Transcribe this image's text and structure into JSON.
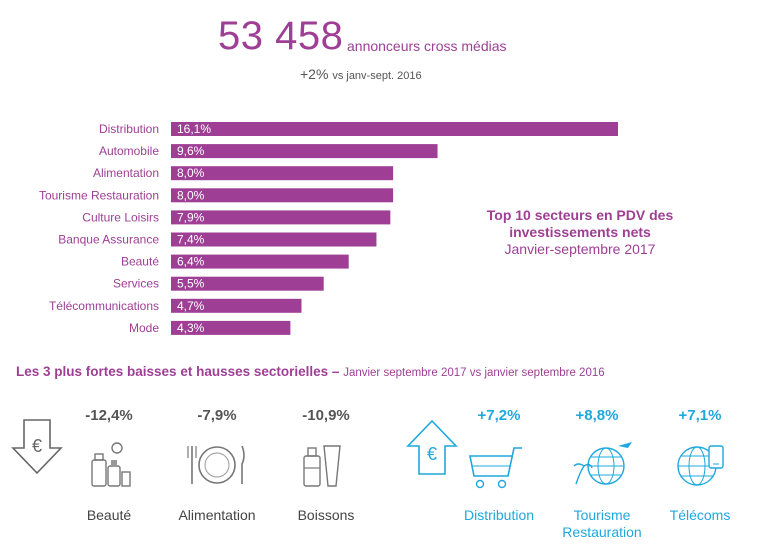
{
  "header": {
    "count": "53 458",
    "count_label": "annonceurs cross médias",
    "change": "+2%",
    "change_label": "vs janv-sept. 2016"
  },
  "chart_data": {
    "type": "bar",
    "orientation": "horizontal",
    "categories": [
      "Distribution",
      "Automobile",
      "Alimentation",
      "Tourisme Restauration",
      "Culture Loisirs",
      "Banque Assurance",
      "Beauté",
      "Services",
      "Télécommunications",
      "Mode"
    ],
    "values": [
      16.1,
      9.6,
      8.0,
      8.0,
      7.9,
      7.4,
      6.4,
      5.5,
      4.7,
      4.3
    ],
    "data_labels": [
      "16,1%",
      "9,6%",
      "8,0%",
      "8,0%",
      "7,9%",
      "7,4%",
      "6,4%",
      "5,5%",
      "4,7%",
      "4,3%"
    ],
    "bar_color": "#9e3f95",
    "title_line1": "Top 10 secteurs en PDV des",
    "title_line2": "investissements nets",
    "title_line3": "Janvier-septembre 2017"
  },
  "bottom": {
    "title": "Les 3 plus fortes baisses et hausses sectorielles –",
    "subtitle": "Janvier septembre 2017 vs janvier septembre 2016",
    "down_color": "#555555",
    "up_color": "#1fa8dd",
    "euro_symbol": "€",
    "decreases": [
      {
        "pct": "-12,4%",
        "name": "Beauté",
        "icon": "cosmetics-icon"
      },
      {
        "pct": "-7,9%",
        "name": "Alimentation",
        "icon": "plate-cutlery-icon"
      },
      {
        "pct": "-10,9%",
        "name": "Boissons",
        "icon": "drinks-icon"
      }
    ],
    "increases": [
      {
        "pct": "+7,2%",
        "name": "Distribution",
        "icon": "shopping-cart-icon"
      },
      {
        "pct": "+8,8%",
        "name_line1": "Tourisme",
        "name_line2": "Restauration",
        "icon": "globe-travel-icon"
      },
      {
        "pct": "+7,1%",
        "name": "Télécoms",
        "icon": "globe-phone-icon"
      }
    ]
  }
}
